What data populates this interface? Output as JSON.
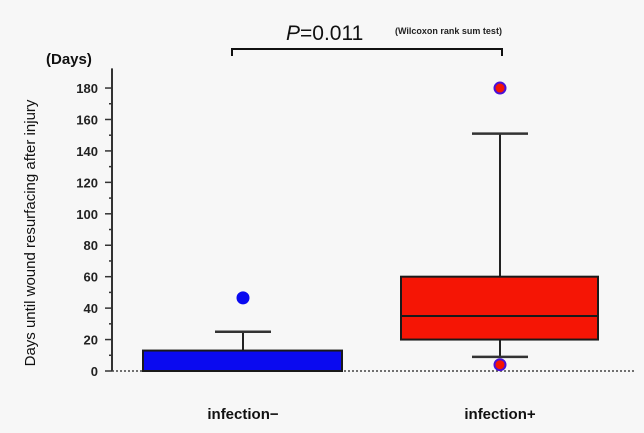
{
  "chart_data": {
    "type": "boxplot",
    "title": "",
    "annotation": {
      "p_label": "P",
      "p_value_text": "=0.011",
      "test_name": "(Wilcoxon rank sum test)"
    },
    "ylabel": "Days until wound resurfacing after injury",
    "yunit": "(Days)",
    "xlabel": "",
    "ylim": [
      0,
      190
    ],
    "yticks": [
      0,
      20,
      40,
      60,
      80,
      100,
      120,
      140,
      160,
      180
    ],
    "yticks_minor_step": 10,
    "categories": [
      "infection−",
      "infection+"
    ],
    "series": [
      {
        "name": "infection−",
        "color": "#0a0af0",
        "whisker_low": 0,
        "q1": 0,
        "median": 0,
        "q3": 13,
        "whisker_high": 25,
        "outliers": [
          46.5
        ]
      },
      {
        "name": "infection+",
        "color": "#f51505",
        "whisker_low": 9,
        "q1": 20,
        "median": 35,
        "q3": 60,
        "whisker_high": 151,
        "outliers": [
          180,
          4
        ]
      }
    ],
    "outlier_colors": {
      "fill_infection_minus": "#0a0af0",
      "fill_infection_plus": "#f51505",
      "stroke_infection_plus": "#4a10d8"
    },
    "grid": false,
    "baseline": "dotted"
  }
}
